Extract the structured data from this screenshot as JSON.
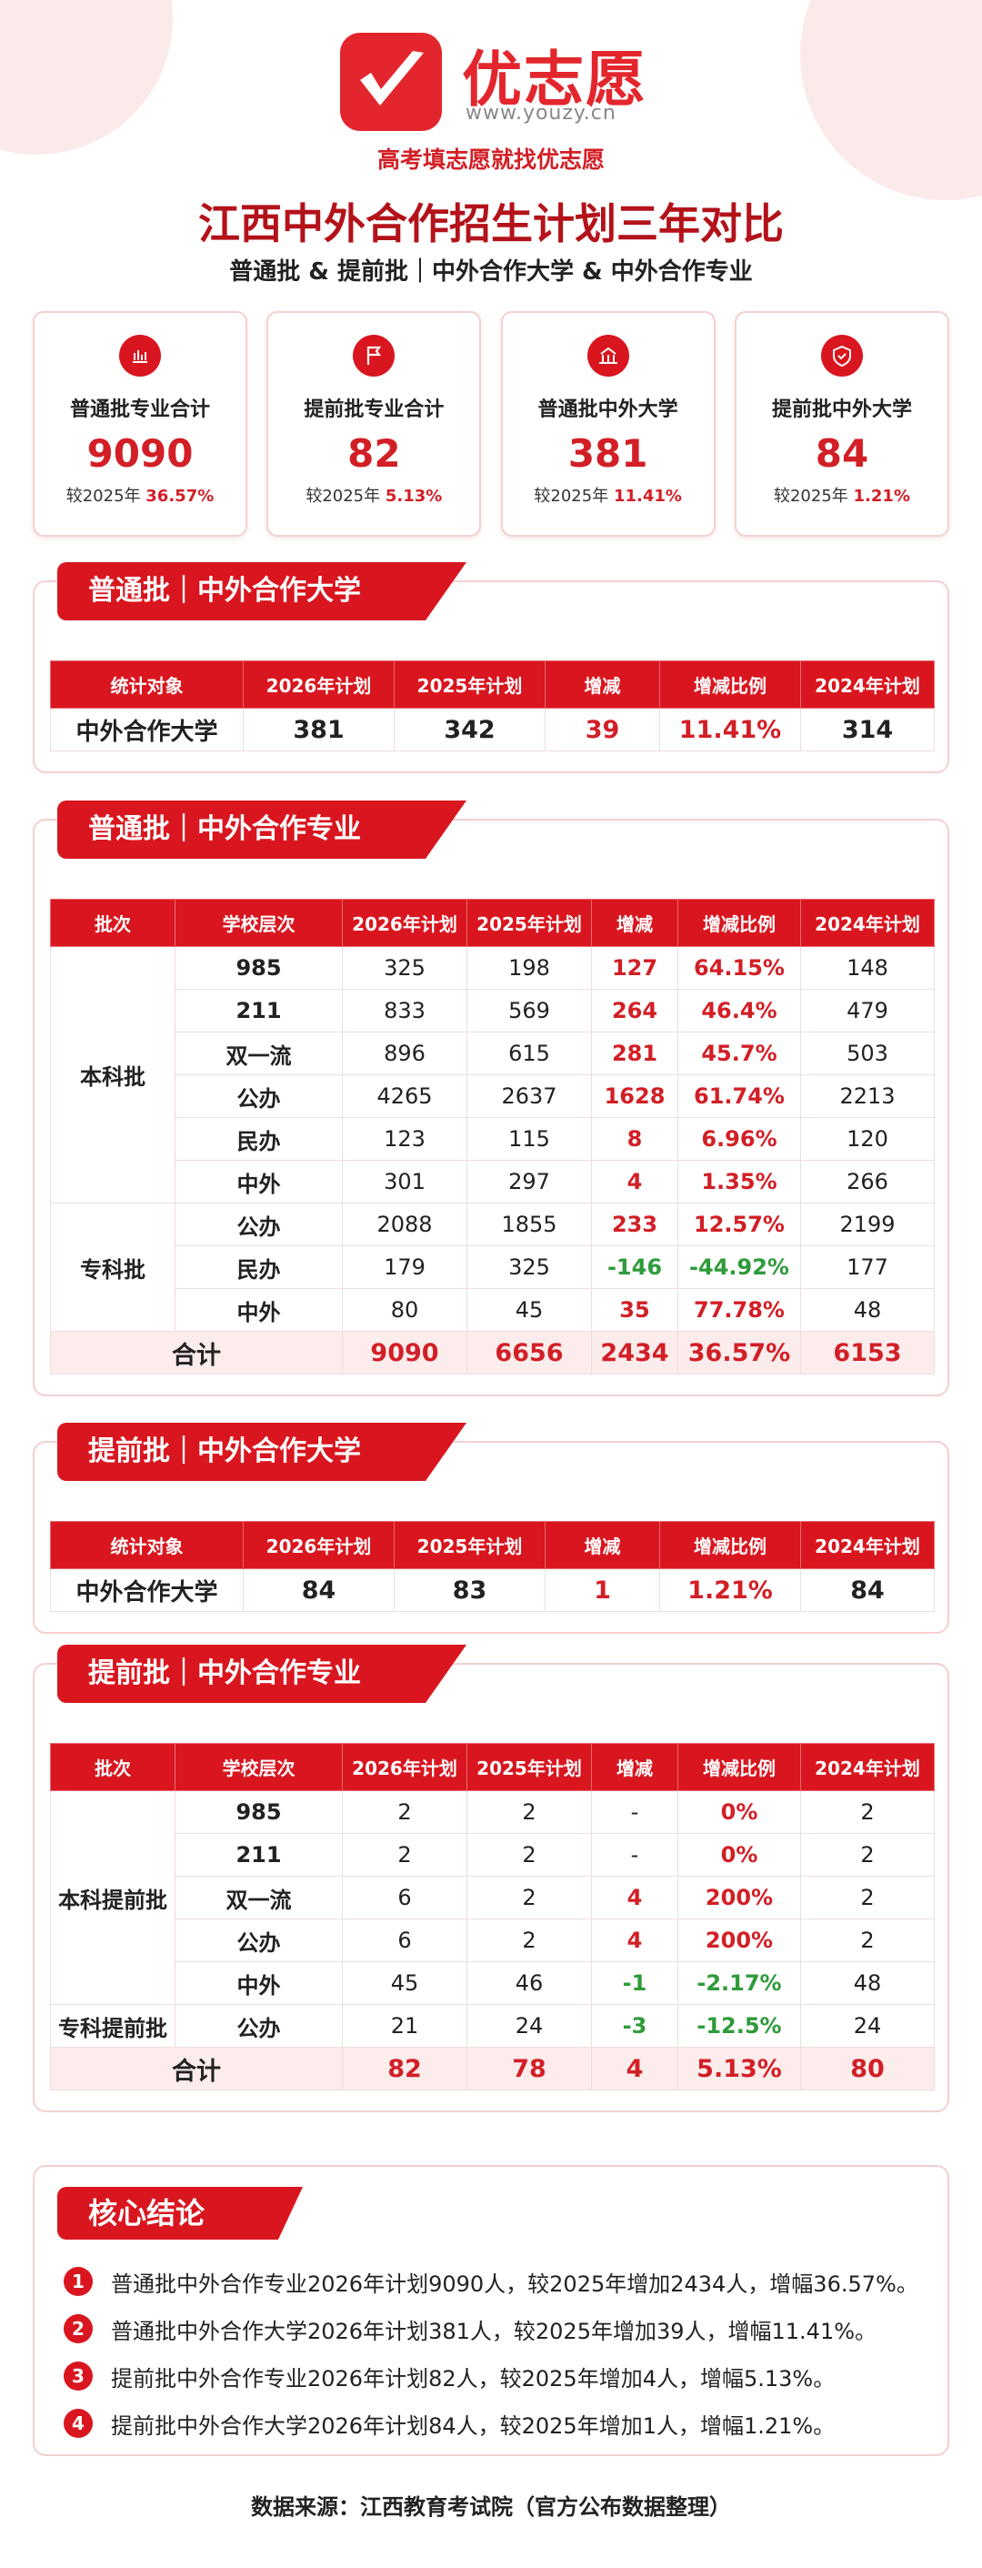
{
  "header": {
    "logo_text": "优志愿",
    "url": "www.youzy.cn",
    "slogan": "高考填志愿就找优志愿",
    "title": "江西中外合作招生计划三年对比",
    "subtitle": "普通批 & 提前批｜中外合作大学 & 中外合作专业"
  },
  "cards": [
    {
      "label": "普通批专业合计",
      "value": "9090",
      "compare_prefix": "较2025年",
      "compare_value": "36.57%"
    },
    {
      "label": "提前批专业合计",
      "value": "82",
      "compare_prefix": "较2025年",
      "compare_value": "5.13%"
    },
    {
      "label": "普通批中外大学",
      "value": "381",
      "compare_prefix": "较2025年",
      "compare_value": "11.41%"
    },
    {
      "label": "提前批中外大学",
      "value": "84",
      "compare_prefix": "较2025年",
      "compare_value": "1.21%"
    }
  ],
  "sections": [
    {
      "title": "普通批｜中外合作大学",
      "header": [
        "统计对象",
        "2026年计划",
        "2025年计划",
        "增减",
        "增减比例",
        "2024年计划"
      ],
      "rows": [
        [
          "中外合作大学",
          "381",
          "342",
          "39",
          "11.41%",
          "314"
        ]
      ]
    },
    {
      "title": "普通批｜中外合作专业",
      "header": [
        "批次",
        "学校层次",
        "2026年计划",
        "2025年计划",
        "增减",
        "增减比例",
        "2024年计划"
      ],
      "groups": [
        {
          "name": "本科批",
          "rows": [
            [
              "985",
              "325",
              "198",
              "127",
              "64.15%",
              "148"
            ],
            [
              "211",
              "833",
              "569",
              "264",
              "46.4%",
              "479"
            ],
            [
              "双一流",
              "896",
              "615",
              "281",
              "45.7%",
              "503"
            ],
            [
              "公办",
              "4265",
              "2637",
              "1628",
              "61.74%",
              "2213"
            ],
            [
              "民办",
              "123",
              "115",
              "8",
              "6.96%",
              "120"
            ],
            [
              "中外",
              "301",
              "297",
              "4",
              "1.35%",
              "266"
            ]
          ]
        },
        {
          "name": "专科批",
          "rows": [
            [
              "公办",
              "2088",
              "1855",
              "233",
              "12.57%",
              "2199"
            ],
            [
              "民办",
              "179",
              "325",
              "-146",
              "-44.92%",
              "177"
            ],
            [
              "中外",
              "80",
              "45",
              "35",
              "77.78%",
              "48"
            ]
          ]
        }
      ],
      "total": [
        "合计",
        "9090",
        "6656",
        "2434",
        "36.57%",
        "6153"
      ]
    },
    {
      "title": "提前批｜中外合作大学",
      "header": [
        "统计对象",
        "2026年计划",
        "2025年计划",
        "增减",
        "增减比例",
        "2024年计划"
      ],
      "rows": [
        [
          "中外合作大学",
          "84",
          "83",
          "1",
          "1.21%",
          "84"
        ]
      ]
    },
    {
      "title": "提前批｜中外合作专业",
      "header": [
        "批次",
        "学校层次",
        "2026年计划",
        "2025年计划",
        "增减",
        "增减比例",
        "2024年计划"
      ],
      "groups": [
        {
          "name": "本科提前批",
          "rows": [
            [
              "985",
              "2",
              "2",
              "-",
              "0%",
              "2"
            ],
            [
              "211",
              "2",
              "2",
              "-",
              "0%",
              "2"
            ],
            [
              "双一流",
              "6",
              "2",
              "4",
              "200%",
              "2"
            ],
            [
              "公办",
              "6",
              "2",
              "4",
              "200%",
              "2"
            ],
            [
              "中外",
              "45",
              "46",
              "-1",
              "-2.17%",
              "48"
            ]
          ]
        },
        {
          "name": "专科提前批",
          "rows": [
            [
              "公办",
              "21",
              "24",
              "-3",
              "-12.5%",
              "24"
            ]
          ]
        }
      ],
      "total": [
        "合计",
        "82",
        "78",
        "4",
        "5.13%",
        "80"
      ]
    }
  ],
  "conclusions": {
    "title": "核心结论",
    "items": [
      {
        "num": "1",
        "text": "普通批中外合作专业2026年计划9090人，较2025年增加2434人，增幅36.57%。"
      },
      {
        "num": "2",
        "text": "普通批中外合作大学2026年计划381人，较2025年增加39人，增幅11.41%。"
      },
      {
        "num": "3",
        "text": "提前批中外合作专业2026年计划82人，较2025年增加4人，增幅5.13%。"
      },
      {
        "num": "4",
        "text": "提前批中外合作大学2026年计划84人，较2025年增加1人，增幅1.21%。"
      }
    ]
  },
  "footer": "数据来源：江西教育考试院（官方公布数据整理）"
}
